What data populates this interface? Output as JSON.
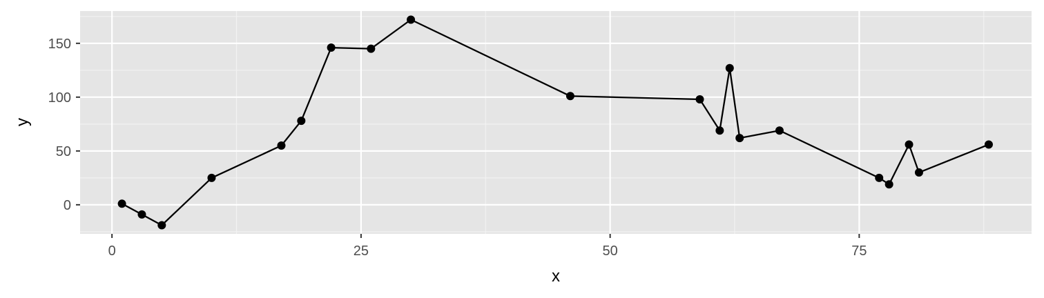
{
  "chart_data": {
    "type": "line",
    "title": "",
    "xlabel": "x",
    "ylabel": "y",
    "xlim": [
      -3.2,
      92.3
    ],
    "ylim": [
      -27,
      180
    ],
    "x_ticks": [
      0,
      25,
      50,
      75
    ],
    "y_ticks": [
      0,
      50,
      100,
      150
    ],
    "x_minor_ticks": [
      12.5,
      37.5,
      62.5,
      87.5
    ],
    "y_minor_ticks": [
      -25,
      25,
      75,
      125,
      175
    ],
    "grid": true,
    "legend": "none",
    "colors": {
      "panel_background": "#e5e5e5",
      "grid_major": "#ffffff",
      "grid_minor": "#f2f2f2",
      "line": "#000000",
      "point": "#000000"
    },
    "series": [
      {
        "x": [
          1,
          3,
          5,
          10,
          17,
          19,
          22,
          26,
          30,
          46,
          59,
          61,
          62,
          63,
          67,
          77,
          78,
          80,
          81,
          88
        ],
        "y": [
          1,
          -9,
          -19,
          25,
          55,
          78,
          146,
          145,
          172,
          101,
          98,
          69,
          127,
          62,
          69,
          25,
          19,
          56,
          30,
          56
        ]
      }
    ]
  }
}
